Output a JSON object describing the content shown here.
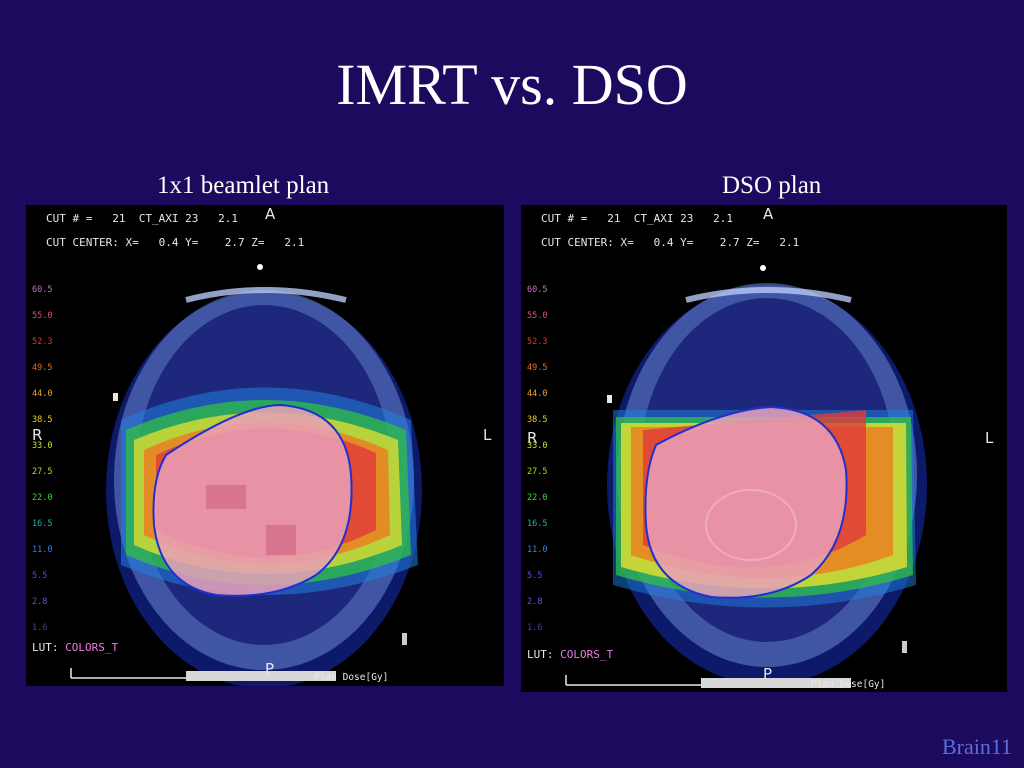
{
  "slide": {
    "title": "IMRT vs. DSO",
    "footer": "Brain11"
  },
  "panels": [
    {
      "caption": "1x1 beamlet plan",
      "cut_line": "CUT # =   21  CT_AXI 23   2.1",
      "center_line": "CUT CENTER: X=   0.4 Y=    2.7 Z=   2.1",
      "orient_anterior": "A",
      "orient_right": "R",
      "orient_left": "L",
      "orient_posterior": "P",
      "lut_label": "LUT:",
      "lut_value": "COLORS_T",
      "dose_label": "Plan Dose[Gy]",
      "legend": [
        "60.5",
        "55.0",
        "52.3",
        "49.5",
        "44.0",
        "38.5",
        "33.0",
        "27.5",
        "22.0",
        "16.5",
        "11.0",
        "5.5",
        "2.8",
        "1.6"
      ]
    },
    {
      "caption": "DSO plan",
      "cut_line": "CUT # =   21  CT_AXI 23   2.1",
      "center_line": "CUT CENTER: X=   0.4 Y=    2.7 Z=   2.1",
      "orient_anterior": "A",
      "orient_right": "R",
      "orient_left": "L",
      "orient_posterior": "P",
      "lut_label": "LUT:",
      "lut_value": "COLORS_T",
      "dose_label": "Plan Dose[Gy]",
      "legend": [
        "60.5",
        "55.0",
        "52.3",
        "49.5",
        "44.0",
        "38.5",
        "33.0",
        "27.5",
        "22.0",
        "16.5",
        "11.0",
        "5.5",
        "2.8",
        "1.6"
      ]
    }
  ],
  "colors": {
    "background": "#1b0a5e",
    "legend": [
      "#c86cc8",
      "#e0507a",
      "#e03a2a",
      "#ee6a1a",
      "#f2a020",
      "#f2d020",
      "#d8e020",
      "#a0e020",
      "#40d040",
      "#20b0b0",
      "#3080f0",
      "#5050f0",
      "#5a5ad0",
      "#4040a0"
    ]
  }
}
